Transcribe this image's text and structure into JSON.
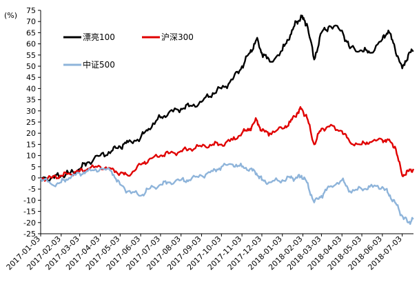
{
  "chart_data": {
    "type": "line",
    "ylabel": "(%)",
    "ylim": [
      -25,
      75
    ],
    "yticks": [
      -25,
      -20,
      -15,
      -10,
      -5,
      0,
      5,
      10,
      15,
      20,
      25,
      30,
      35,
      40,
      45,
      50,
      55,
      60,
      65,
      70,
      75
    ],
    "xlim": [
      "2017-01-03",
      "2018-07-20"
    ],
    "xticks": [
      "2017-01-03",
      "2017-02-03",
      "2017-03-03",
      "2017-04-03",
      "2017-05-03",
      "2017-06-03",
      "2017-07-03",
      "2017-08-03",
      "2017-09-03",
      "2017-10-03",
      "2017-11-03",
      "2017-12-03",
      "2018-01-03",
      "2018-02-03",
      "2018-03-03",
      "2018-04-03",
      "2018-05-03",
      "2018-06-03",
      "2018-07-03"
    ],
    "grid": false,
    "legend_position": "top-left",
    "series": [
      {
        "name": "漂亮100",
        "color": "#000000",
        "x": [
          "2017-01-03",
          "2017-01-20",
          "2017-02-03",
          "2017-02-15",
          "2017-03-03",
          "2017-03-15",
          "2017-04-03",
          "2017-04-20",
          "2017-05-03",
          "2017-05-15",
          "2017-06-03",
          "2017-06-15",
          "2017-07-03",
          "2017-07-15",
          "2017-08-03",
          "2017-08-15",
          "2017-09-03",
          "2017-09-20",
          "2017-10-03",
          "2017-10-20",
          "2017-11-03",
          "2017-11-15",
          "2017-11-25",
          "2017-12-03",
          "2017-12-15",
          "2018-01-03",
          "2018-01-15",
          "2018-01-25",
          "2018-02-01",
          "2018-02-09",
          "2018-02-20",
          "2018-03-03",
          "2018-03-15",
          "2018-04-03",
          "2018-04-15",
          "2018-05-03",
          "2018-05-15",
          "2018-06-03",
          "2018-06-12",
          "2018-06-22",
          "2018-07-03",
          "2018-07-12",
          "2018-07-20"
        ],
        "values": [
          0,
          0,
          1,
          2,
          4,
          7,
          10,
          12,
          14,
          16,
          18,
          22,
          27,
          29,
          31,
          32,
          34,
          38,
          40,
          44,
          50,
          56,
          62,
          56,
          52,
          57,
          64,
          70,
          72,
          69,
          53,
          65,
          68,
          66,
          58,
          57,
          56,
          62,
          66,
          58,
          49,
          55,
          57
        ]
      },
      {
        "name": "沪深300",
        "color": "#e00000",
        "x": [
          "2017-01-03",
          "2017-01-20",
          "2017-02-03",
          "2017-02-15",
          "2017-03-03",
          "2017-03-15",
          "2017-04-03",
          "2017-04-20",
          "2017-05-03",
          "2017-05-15",
          "2017-06-03",
          "2017-06-15",
          "2017-07-03",
          "2017-07-15",
          "2017-08-03",
          "2017-08-15",
          "2017-09-03",
          "2017-09-20",
          "2017-10-03",
          "2017-10-20",
          "2017-11-03",
          "2017-11-15",
          "2017-11-25",
          "2017-12-03",
          "2017-12-15",
          "2018-01-03",
          "2018-01-15",
          "2018-01-25",
          "2018-02-01",
          "2018-02-09",
          "2018-02-20",
          "2018-03-03",
          "2018-03-15",
          "2018-04-03",
          "2018-04-15",
          "2018-05-03",
          "2018-05-15",
          "2018-06-03",
          "2018-06-12",
          "2018-06-22",
          "2018-07-03",
          "2018-07-12",
          "2018-07-20"
        ],
        "values": [
          0,
          0,
          1,
          2,
          3,
          4,
          5,
          4,
          2,
          1,
          6,
          8,
          10,
          11,
          12,
          13,
          14,
          15,
          15,
          17,
          20,
          22,
          26,
          21,
          20,
          22,
          25,
          29,
          31,
          27,
          15,
          22,
          23,
          21,
          16,
          15,
          16,
          17,
          17,
          14,
          1,
          3,
          4
        ]
      },
      {
        "name": "中证500",
        "color": "#8eb4da",
        "x": [
          "2017-01-03",
          "2017-01-20",
          "2017-02-03",
          "2017-02-15",
          "2017-03-03",
          "2017-03-15",
          "2017-04-03",
          "2017-04-20",
          "2017-05-03",
          "2017-05-15",
          "2017-06-03",
          "2017-06-15",
          "2017-07-03",
          "2017-07-15",
          "2017-08-03",
          "2017-08-15",
          "2017-09-03",
          "2017-09-20",
          "2017-10-03",
          "2017-10-20",
          "2017-11-03",
          "2017-11-15",
          "2017-11-25",
          "2017-12-03",
          "2017-12-15",
          "2018-01-03",
          "2018-01-15",
          "2018-01-25",
          "2018-02-01",
          "2018-02-09",
          "2018-02-20",
          "2018-03-03",
          "2018-03-15",
          "2018-04-03",
          "2018-04-15",
          "2018-05-03",
          "2018-05-15",
          "2018-06-03",
          "2018-06-12",
          "2018-06-22",
          "2018-07-03",
          "2018-07-12",
          "2018-07-20"
        ],
        "values": [
          0,
          -3,
          -2,
          0,
          2,
          3,
          4,
          3,
          -3,
          -6,
          -8,
          -5,
          -3,
          -2,
          -1,
          -1,
          1,
          3,
          5,
          6,
          5,
          4,
          2,
          -1,
          -2,
          -1,
          0,
          0,
          1,
          -2,
          -11,
          -8,
          -4,
          -1,
          -6,
          -5,
          -4,
          -4,
          -7,
          -11,
          -17,
          -20,
          -18
        ]
      }
    ]
  }
}
